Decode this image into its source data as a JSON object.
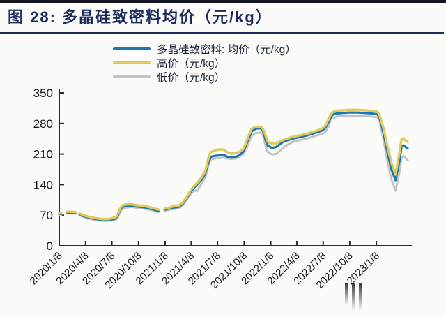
{
  "chart_data": {
    "type": "line",
    "title": "图 28: 多晶硅致密料均价（元/kg）",
    "xlabel": "",
    "ylabel": "",
    "ylim": [
      0,
      350
    ],
    "yticks": [
      0,
      70,
      140,
      210,
      280,
      350
    ],
    "xticks": [
      "2020/1/8",
      "2020/4/8",
      "2020/7/8",
      "2020/10/8",
      "2021/1/8",
      "2021/4/8",
      "2021/7/8",
      "2021/10/8",
      "2022/1/8",
      "2022/4/8",
      "2022/7/8",
      "2022/10/8",
      "2023/1/8"
    ],
    "grid": false,
    "legend_position": "top-center",
    "axis_color": "#2b2b2b",
    "title_color": "#1c2a5e",
    "x": [
      "2020/1/8",
      "2020/1/15",
      "2020/1/29",
      "2020/2/5",
      "2020/2/19",
      "2020/3/4",
      "2020/3/11",
      "2020/3/18",
      "2020/4/1",
      "2020/4/15",
      "2020/5/6",
      "2020/5/27",
      "2020/6/10",
      "2020/6/24",
      "2020/7/8",
      "2020/7/22",
      "2020/7/29",
      "2020/8/5",
      "2020/8/12",
      "2020/8/19",
      "2020/9/2",
      "2020/9/16",
      "2020/9/30",
      "2020/10/14",
      "2020/10/28",
      "2020/11/11",
      "2020/11/25",
      "2020/12/9",
      "2020/12/16",
      "2020/12/23",
      "2021/1/6",
      "2021/1/20",
      "2021/2/3",
      "2021/2/24",
      "2021/3/10",
      "2021/3/24",
      "2021/4/7",
      "2021/4/21",
      "2021/4/28",
      "2021/5/12",
      "2021/5/26",
      "2021/6/2",
      "2021/6/9",
      "2021/6/16",
      "2021/6/30",
      "2021/7/14",
      "2021/7/28",
      "2021/8/11",
      "2021/8/25",
      "2021/9/8",
      "2021/9/22",
      "2021/10/6",
      "2021/10/20",
      "2021/11/3",
      "2021/11/17",
      "2021/12/1",
      "2021/12/8",
      "2021/12/15",
      "2021/12/22",
      "2021/12/29",
      "2022/1/12",
      "2022/1/26",
      "2022/2/9",
      "2022/2/23",
      "2022/3/9",
      "2022/3/23",
      "2022/4/6",
      "2022/4/20",
      "2022/5/11",
      "2022/5/25",
      "2022/6/8",
      "2022/6/22",
      "2022/7/6",
      "2022/7/13",
      "2022/7/20",
      "2022/7/27",
      "2022/8/3",
      "2022/8/10",
      "2022/8/24",
      "2022/9/14",
      "2022/10/5",
      "2022/11/2",
      "2022/11/30",
      "2022/12/21",
      "2023/1/11",
      "2023/1/18",
      "2023/2/1",
      "2023/2/15",
      "2023/3/1",
      "2023/3/15",
      "2023/3/29",
      "2023/4/5",
      "2023/4/12",
      "2023/4/19",
      "2023/4/26"
    ],
    "series": [
      {
        "name": "多晶硅致密料: 均价（元/kg）",
        "color": "#1b79ad",
        "values": [
          73,
          73,
          null,
          76,
          76,
          75,
          null,
          72,
          68,
          65,
          62,
          60,
          59,
          59,
          60,
          63,
          70,
          81,
          88,
          91,
          92,
          92,
          90,
          89,
          88,
          86,
          84,
          81,
          80,
          null,
          83,
          85,
          87,
          89,
          96,
          110,
          125,
          135,
          140,
          150,
          164,
          180,
          196,
          204,
          206,
          207,
          208,
          204,
          202,
          203,
          208,
          216,
          240,
          262,
          268,
          269,
          267,
          258,
          240,
          229,
          224,
          226,
          233,
          239,
          242,
          245,
          247,
          249,
          252,
          255,
          258,
          261,
          264,
          268,
          275,
          284,
          294,
          300,
          303,
          304,
          305,
          305,
          304,
          303,
          301,
          295,
          260,
          215,
          175,
          150,
          195,
          228,
          230,
          226,
          223
        ]
      },
      {
        "name": "高价（元/kg）",
        "color": "#e0ca5c",
        "values": [
          75,
          75,
          null,
          78,
          78,
          77,
          null,
          74,
          70,
          67,
          64,
          62,
          61,
          61,
          63,
          66,
          73,
          85,
          92,
          94,
          95,
          95,
          93,
          92,
          91,
          89,
          87,
          84,
          83,
          null,
          85,
          87,
          90,
          92,
          99,
          113,
          128,
          139,
          144,
          155,
          170,
          188,
          207,
          215,
          218,
          221,
          220,
          214,
          211,
          212,
          215,
          222,
          246,
          268,
          272,
          273,
          271,
          264,
          250,
          238,
          233,
          235,
          239,
          243,
          246,
          249,
          251,
          253,
          256,
          259,
          262,
          265,
          269,
          273,
          280,
          290,
          300,
          306,
          309,
          310,
          311,
          311,
          310,
          309,
          307,
          301,
          270,
          228,
          190,
          163,
          215,
          244,
          246,
          241,
          238
        ]
      },
      {
        "name": "低价（元/kg）",
        "color": "#c3c3c7",
        "values": [
          71,
          71,
          null,
          74,
          74,
          73,
          null,
          70,
          66,
          63,
          60,
          58,
          57,
          57,
          58,
          60,
          66,
          76,
          84,
          87,
          88,
          89,
          87,
          86,
          85,
          83,
          81,
          78,
          77,
          null,
          80,
          82,
          84,
          86,
          92,
          105,
          119,
          127,
          125,
          140,
          156,
          172,
          190,
          198,
          200,
          201,
          202,
          200,
          199,
          200,
          204,
          210,
          228,
          252,
          258,
          259,
          257,
          246,
          226,
          214,
          209,
          210,
          218,
          226,
          232,
          237,
          240,
          242,
          245,
          248,
          251,
          254,
          256,
          259,
          265,
          274,
          286,
          293,
          296,
          297,
          298,
          298,
          297,
          296,
          294,
          288,
          245,
          195,
          152,
          126,
          170,
          202,
          206,
          200,
          196
        ]
      }
    ]
  }
}
